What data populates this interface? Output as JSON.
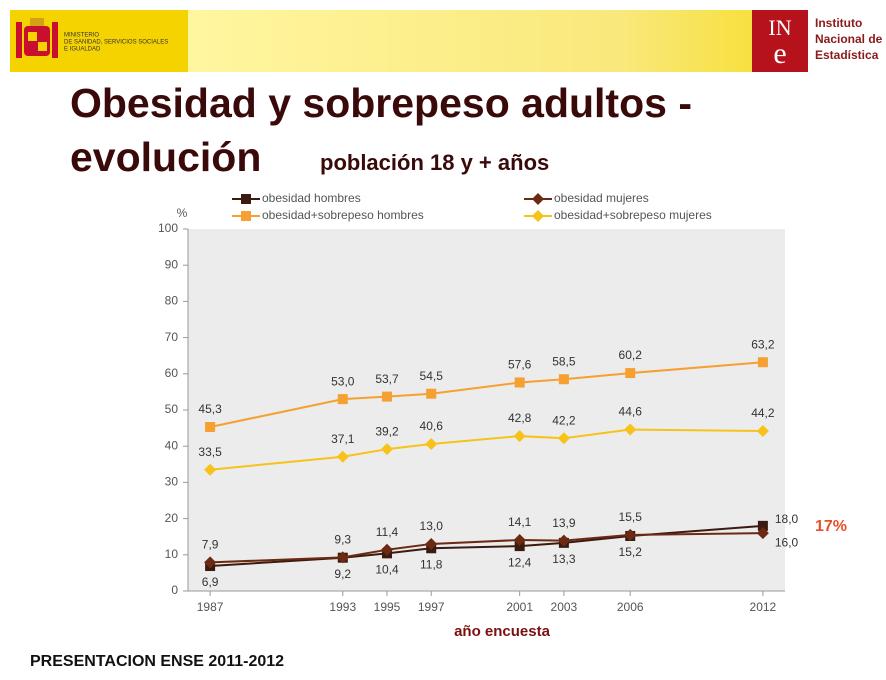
{
  "header": {
    "ministry": [
      "MINISTERIO",
      "DE SANIDAD, SERVICIOS SOCIALES",
      "E IGUALDAD"
    ],
    "ine_logo": [
      "IN",
      "e"
    ],
    "ine": [
      "Instituto",
      "Nacional de",
      "Estadística"
    ]
  },
  "slide_title": {
    "line1": "Obesidad y sobrepeso adultos -",
    "line2": "evolución",
    "subtitle": "población 18 y + años"
  },
  "chart_data": {
    "type": "line",
    "y_label": "%",
    "x_label": "año encuesta",
    "x": [
      1987,
      1993,
      1995,
      1997,
      2001,
      2003,
      2006,
      2012
    ],
    "xlim": [
      1986,
      2013
    ],
    "xticks": [
      1987,
      1993,
      1995,
      1997,
      2001,
      2003,
      2006,
      2012
    ],
    "ylim": [
      0,
      100
    ],
    "yticks": [
      0,
      10,
      20,
      30,
      40,
      50,
      60,
      70,
      80,
      90,
      100
    ],
    "series": [
      {
        "name": "obesidad hombres",
        "color": "#3b1a0f",
        "marker": "square",
        "values": [
          6.9,
          9.2,
          10.4,
          11.8,
          12.4,
          13.3,
          15.2,
          18.0
        ],
        "value_labels": [
          "6,9",
          "9,2",
          "10,4",
          "11,8",
          "12,4",
          "13,3",
          "15,2",
          "18,0"
        ]
      },
      {
        "name": "obesidad mujeres",
        "color": "#6b2a12",
        "marker": "diamond",
        "values": [
          7.9,
          9.3,
          11.4,
          13.0,
          14.1,
          13.9,
          15.5,
          16.0
        ],
        "value_labels": [
          "7,9",
          "9,3",
          "11,4",
          "13,0",
          "14,1",
          "13,9",
          "15,5",
          "16,0"
        ]
      },
      {
        "name": "obesidad+sobrepeso hombres",
        "color": "#f5a030",
        "marker": "square",
        "values": [
          45.3,
          53.0,
          53.7,
          54.5,
          57.6,
          58.5,
          60.2,
          63.2
        ],
        "value_labels": [
          "45,3",
          "53,0",
          "53,7",
          "54,5",
          "57,6",
          "58,5",
          "60,2",
          "63,2"
        ]
      },
      {
        "name": "obesidad+sobrepeso mujeres",
        "color": "#f7c21a",
        "marker": "diamond",
        "values": [
          33.5,
          37.1,
          39.2,
          40.6,
          42.8,
          42.2,
          44.6,
          44.2
        ],
        "value_labels": [
          "33,5",
          "37,1",
          "39,2",
          "40,6",
          "42,8",
          "42,2",
          "44,6",
          "44,2"
        ]
      }
    ],
    "annotation": "17%"
  },
  "footer": "PRESENTACION ENSE 2011-2012"
}
